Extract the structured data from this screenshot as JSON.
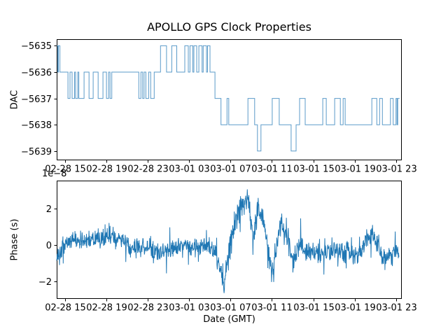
{
  "figure": {
    "title": "APOLLO GPS Clock Properties",
    "xlabel": "Date (GMT)",
    "top": {
      "ylabel": "DAC"
    },
    "bottom": {
      "ylabel": "Phase (s)",
      "offset_text": "1e−8"
    },
    "colors": {
      "background": "#ffffff",
      "dac_line": "#5b9bc9",
      "phase_line": "#1f77b4",
      "axis": "#000000",
      "text": "#000000"
    }
  },
  "chart_data": [
    {
      "type": "line",
      "subplot": "top",
      "title": "APOLLO GPS Clock Properties",
      "ylabel": "DAC",
      "drawstyle": "steps-post",
      "x_unit": "hours since axis left edge (02-28 ~14:10 GMT)",
      "xlim": [
        0,
        33.4
      ],
      "ylim": [
        -5639.35,
        -5634.75
      ],
      "grid": false,
      "xticks": {
        "hours": [
          0.83,
          4.83,
          8.83,
          12.83,
          16.83,
          20.83,
          24.83,
          28.83,
          32.83
        ],
        "labels": [
          "02-28 15",
          "02-28 19",
          "02-28 23",
          "03-01 03",
          "03-01 07",
          "03-01 11",
          "03-01 15",
          "03-01 19",
          "03-01 23"
        ]
      },
      "yticks": {
        "values": [
          -5635,
          -5636,
          -5637,
          -5638,
          -5639
        ],
        "labels": [
          "−5635",
          "−5636",
          "−5637",
          "−5638",
          "−5639"
        ]
      },
      "series": [
        {
          "name": "DAC",
          "color": "#5b9bc9",
          "points": [
            [
              0,
              -5635
            ],
            [
              0.1,
              -5636
            ],
            [
              0.17,
              -5635
            ],
            [
              0.31,
              -5636
            ],
            [
              1.09,
              -5637
            ],
            [
              1.29,
              -5636
            ],
            [
              1.49,
              -5637
            ],
            [
              1.73,
              -5636
            ],
            [
              1.83,
              -5637
            ],
            [
              2.04,
              -5636
            ],
            [
              2.14,
              -5637
            ],
            [
              2.65,
              -5636
            ],
            [
              3.13,
              -5637
            ],
            [
              3.53,
              -5636
            ],
            [
              4.01,
              -5637
            ],
            [
              4.48,
              -5636
            ],
            [
              4.82,
              -5637
            ],
            [
              5.03,
              -5636
            ],
            [
              5.16,
              -5637
            ],
            [
              5.33,
              -5636
            ],
            [
              7.95,
              -5637
            ],
            [
              8.15,
              -5636
            ],
            [
              8.32,
              -5637
            ],
            [
              8.46,
              -5636
            ],
            [
              8.63,
              -5637
            ],
            [
              8.9,
              -5636
            ],
            [
              9.1,
              -5637
            ],
            [
              9.44,
              -5636
            ],
            [
              10.05,
              -5635
            ],
            [
              10.63,
              -5636
            ],
            [
              11.14,
              -5635
            ],
            [
              11.62,
              -5636
            ],
            [
              12.4,
              -5635
            ],
            [
              12.74,
              -5636
            ],
            [
              12.9,
              -5635
            ],
            [
              13.18,
              -5636
            ],
            [
              13.28,
              -5635
            ],
            [
              13.55,
              -5636
            ],
            [
              13.76,
              -5635
            ],
            [
              14.07,
              -5636
            ],
            [
              14.18,
              -5635
            ],
            [
              14.5,
              -5636
            ],
            [
              14.6,
              -5635
            ],
            [
              14.84,
              -5636
            ],
            [
              15.32,
              -5637
            ],
            [
              15.9,
              -5638
            ],
            [
              16.48,
              -5637
            ],
            [
              16.65,
              -5638
            ],
            [
              18.51,
              -5637
            ],
            [
              19.16,
              -5638
            ],
            [
              19.43,
              -5639
            ],
            [
              19.77,
              -5638
            ],
            [
              20.86,
              -5637
            ],
            [
              21.54,
              -5638
            ],
            [
              22.69,
              -5639
            ],
            [
              23.17,
              -5638
            ],
            [
              23.51,
              -5637
            ],
            [
              24.05,
              -5638
            ],
            [
              25.75,
              -5637
            ],
            [
              26.09,
              -5638
            ],
            [
              26.9,
              -5637
            ],
            [
              27.45,
              -5638
            ],
            [
              27.72,
              -5637
            ],
            [
              27.92,
              -5638
            ],
            [
              30.5,
              -5637
            ],
            [
              30.98,
              -5638
            ],
            [
              31.25,
              -5637
            ],
            [
              31.52,
              -5638
            ],
            [
              32.3,
              -5637
            ],
            [
              32.57,
              -5638
            ],
            [
              32.84,
              -5637
            ],
            [
              32.94,
              -5638
            ],
            [
              33.01,
              -5637
            ],
            [
              33.18,
              -5637
            ]
          ]
        }
      ]
    },
    {
      "type": "line",
      "subplot": "bottom",
      "ylabel": "Phase (s)",
      "xlabel": "Date (GMT)",
      "offset_text": "1e−8",
      "unit_multiplier": "1e-8",
      "x_unit": "hours since axis left edge (02-28 ~14:10 GMT)",
      "xlim": [
        0,
        33.4
      ],
      "ylim": [
        -2.96,
        3.54
      ],
      "grid": false,
      "xticks": {
        "hours": [
          0.83,
          4.83,
          8.83,
          12.83,
          16.83,
          20.83,
          24.83,
          28.83,
          32.83
        ],
        "labels": [
          "02-28 15",
          "02-28 19",
          "02-28 23",
          "03-01 03",
          "03-01 07",
          "03-01 11",
          "03-01 15",
          "03-01 19",
          "03-01 23"
        ]
      },
      "yticks": {
        "values": [
          -2,
          0,
          2
        ],
        "labels": [
          "−2",
          "0",
          "2"
        ]
      },
      "series": [
        {
          "name": "Phase",
          "color": "#1f77b4",
          "representation": "dense noisy signal; trend = local mean (units of 1e-8 s), noise regenerated deterministically",
          "trend": [
            [
              0,
              -0.7
            ],
            [
              0.3,
              -0.25
            ],
            [
              1,
              0.15
            ],
            [
              2,
              0.3
            ],
            [
              3,
              0.2
            ],
            [
              4,
              0.3
            ],
            [
              5,
              0.32
            ],
            [
              5.7,
              0.3
            ],
            [
              6.5,
              0.25
            ],
            [
              7.2,
              -0.1
            ],
            [
              8,
              -0.1
            ],
            [
              9,
              -0.25
            ],
            [
              9.6,
              -0.38
            ],
            [
              10.3,
              -0.2
            ],
            [
              11,
              -0.15
            ],
            [
              12,
              -0.12
            ],
            [
              12.8,
              0
            ],
            [
              13.7,
              -0.05
            ],
            [
              14.5,
              0.1
            ],
            [
              15.2,
              -0.3
            ],
            [
              15.8,
              -1.3
            ],
            [
              16.15,
              -2.35
            ],
            [
              16.5,
              -1
            ],
            [
              16.9,
              0.3
            ],
            [
              17.3,
              1.4
            ],
            [
              17.7,
              2
            ],
            [
              18.1,
              2.4
            ],
            [
              18.5,
              2.55
            ],
            [
              18.75,
              1.8
            ],
            [
              19,
              0.1
            ],
            [
              19.3,
              1.6
            ],
            [
              19.6,
              2.05
            ],
            [
              19.95,
              1.4
            ],
            [
              20.3,
              0.3
            ],
            [
              20.7,
              -1.1
            ],
            [
              21,
              -1.45
            ],
            [
              21.4,
              0.5
            ],
            [
              21.7,
              1.35
            ],
            [
              22,
              0.75
            ],
            [
              22.4,
              0.35
            ],
            [
              22.8,
              -0.85
            ],
            [
              23.2,
              -0.4
            ],
            [
              23.6,
              0.05
            ],
            [
              24,
              -0.2
            ],
            [
              24.5,
              -0.45
            ],
            [
              25,
              -0.3
            ],
            [
              25.5,
              -0.5
            ],
            [
              26,
              -0.3
            ],
            [
              26.5,
              -0.45
            ],
            [
              27,
              -0.25
            ],
            [
              27.6,
              -0.4
            ],
            [
              28.2,
              -0.3
            ],
            [
              28.7,
              -0.65
            ],
            [
              29.1,
              -0.5
            ],
            [
              29.6,
              -0.1
            ],
            [
              30.1,
              0.45
            ],
            [
              30.55,
              0.65
            ],
            [
              30.9,
              0.25
            ],
            [
              31.3,
              -0.5
            ],
            [
              31.75,
              -0.85
            ],
            [
              32.1,
              -0.4
            ],
            [
              32.5,
              -0.55
            ],
            [
              32.9,
              -0.25
            ],
            [
              33.15,
              -0.45
            ]
          ],
          "noise_sigma_zones": [
            [
              0,
              0.38
            ],
            [
              15,
              0.4
            ],
            [
              17,
              0.52
            ],
            [
              22,
              0.46
            ],
            [
              24,
              0.4
            ],
            [
              33.2,
              0.4
            ]
          ],
          "spike_chance": 0.05,
          "sample_step_hours": 0.03,
          "t_end": 33.15,
          "seed": 1337
        }
      ]
    }
  ]
}
